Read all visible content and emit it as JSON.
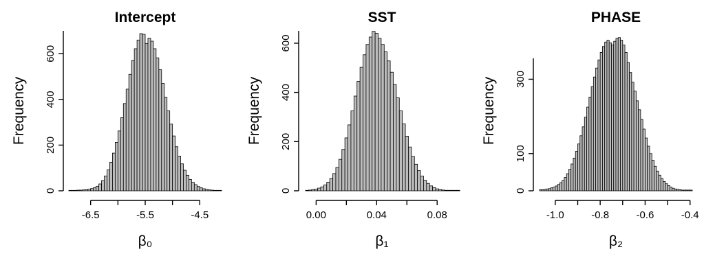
{
  "chart_data": [
    {
      "type": "bar",
      "title": "Intercept",
      "xlabel": "β₀",
      "ylabel": "Frequency",
      "xlim": [
        -6.9,
        -4.1
      ],
      "ylim": [
        0,
        700
      ],
      "xticks": [
        -6.5,
        -5.5,
        -4.5
      ],
      "xtick_labels": [
        "-6.5",
        "-5.5",
        "-4.5"
      ],
      "yticks": [
        0,
        200,
        400,
        600
      ],
      "ytick_labels": [
        "0",
        "200",
        "400",
        "600"
      ],
      "bin_start": -6.9,
      "bin_width": 0.05,
      "bar_color": "#bdbdbd",
      "grid": false,
      "values": [
        2,
        2,
        2,
        3,
        3,
        4,
        5,
        7,
        10,
        14,
        20,
        30,
        45,
        65,
        92,
        125,
        165,
        212,
        262,
        320,
        382,
        445,
        510,
        570,
        622,
        660,
        688,
        685,
        645,
        668,
        655,
        622,
        582,
        530,
        470,
        410,
        350,
        292,
        240,
        193,
        152,
        118,
        90,
        68,
        50,
        37,
        27,
        19,
        13,
        9,
        6,
        4,
        3,
        2,
        2,
        2
      ]
    },
    {
      "type": "bar",
      "title": "SST",
      "xlabel": "β₁",
      "ylabel": "Frequency",
      "xlim": [
        -0.007,
        0.094
      ],
      "ylim": [
        0,
        650
      ],
      "xticks": [
        0.0,
        0.04,
        0.08
      ],
      "xtick_labels": [
        "0.00",
        "0.04",
        "0.08"
      ],
      "yticks": [
        0,
        200,
        400,
        600
      ],
      "ytick_labels": [
        "0",
        "200",
        "400",
        "600"
      ],
      "bin_start": -0.007,
      "bin_width": 0.002,
      "bar_color": "#bdbdbd",
      "grid": false,
      "values": [
        2,
        3,
        5,
        7,
        11,
        16,
        24,
        35,
        50,
        70,
        95,
        128,
        168,
        215,
        268,
        325,
        385,
        445,
        502,
        553,
        595,
        625,
        648,
        640,
        620,
        595,
        565,
        528,
        482,
        432,
        378,
        325,
        272,
        222,
        178,
        140,
        108,
        82,
        60,
        43,
        30,
        20,
        13,
        8,
        5,
        3,
        2,
        2,
        2,
        2,
        2
      ]
    },
    {
      "type": "bar",
      "title": "PHASE",
      "xlabel": "β₂",
      "ylabel": "Frequency",
      "xlim": [
        -1.07,
        -0.39
      ],
      "ylim": [
        0,
        430
      ],
      "xticks": [
        -1.0,
        -0.8,
        -0.6,
        -0.4
      ],
      "xtick_labels": [
        "-1.0",
        "-0.8",
        "-0.6",
        "-0.4"
      ],
      "yticks": [
        0,
        100,
        300
      ],
      "ytick_labels": [
        "0",
        "100",
        "300"
      ],
      "bin_start": -1.07,
      "bin_width": 0.01,
      "bar_color": "#bdbdbd",
      "grid": false,
      "values": [
        3,
        3,
        4,
        5,
        6,
        8,
        10,
        13,
        17,
        22,
        28,
        36,
        46,
        58,
        72,
        88,
        106,
        126,
        148,
        172,
        198,
        225,
        252,
        280,
        306,
        330,
        352,
        372,
        388,
        400,
        405,
        398,
        392,
        402,
        410,
        412,
        405,
        392,
        372,
        345,
        318,
        292,
        268,
        242,
        218,
        192,
        166,
        142,
        120,
        100,
        82,
        66,
        53,
        42,
        33,
        25,
        19,
        14,
        10,
        7,
        5,
        4,
        3,
        2,
        2,
        2,
        2,
        2
      ]
    }
  ]
}
